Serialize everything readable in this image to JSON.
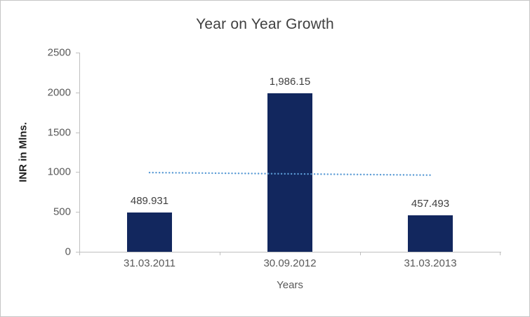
{
  "chart_data": {
    "type": "bar",
    "title": "Year on Year Growth",
    "xlabel": "Years",
    "ylabel": "INR in Mlns.",
    "categories": [
      "31.03.2011",
      "30.09.2012",
      "31.03.2013"
    ],
    "values": [
      489.931,
      1986.15,
      457.493
    ],
    "data_labels": [
      "489.931",
      "1,986.15",
      "457.493"
    ],
    "ylim": [
      0,
      2500
    ],
    "ytick_step": 500,
    "yticks": [
      "0",
      "500",
      "1000",
      "1500",
      "2000",
      "2500"
    ],
    "grid": false,
    "legend": "none",
    "bar_color": "#12275E",
    "axis_color": "#BFBFBF",
    "trendline": {
      "type": "linear",
      "style": "dotted",
      "color": "#5B9BD5",
      "endpoints": [
        994,
        962
      ]
    }
  }
}
